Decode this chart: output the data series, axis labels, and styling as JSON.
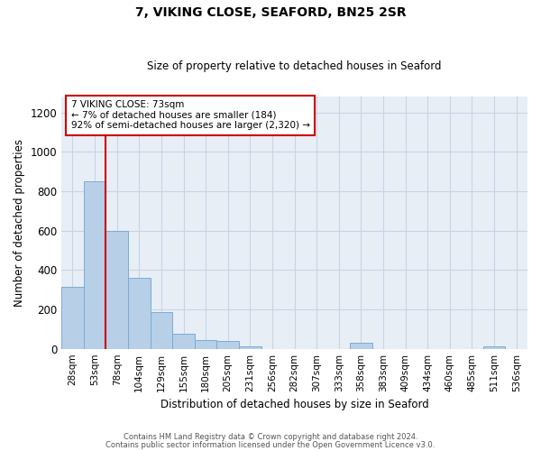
{
  "title": "7, VIKING CLOSE, SEAFORD, BN25 2SR",
  "subtitle": "Size of property relative to detached houses in Seaford",
  "xlabel": "Distribution of detached houses by size in Seaford",
  "ylabel": "Number of detached properties",
  "categories": [
    "28sqm",
    "53sqm",
    "78sqm",
    "104sqm",
    "129sqm",
    "155sqm",
    "180sqm",
    "205sqm",
    "231sqm",
    "256sqm",
    "282sqm",
    "307sqm",
    "333sqm",
    "358sqm",
    "383sqm",
    "409sqm",
    "434sqm",
    "460sqm",
    "485sqm",
    "511sqm",
    "536sqm"
  ],
  "values": [
    315,
    850,
    600,
    360,
    185,
    75,
    45,
    40,
    12,
    0,
    0,
    0,
    0,
    30,
    0,
    0,
    0,
    0,
    0,
    12,
    0
  ],
  "bar_color": "#b8cfe8",
  "bar_edge_color": "#7aacd4",
  "grid_color": "#c8d4e4",
  "background_color": "#e8eef6",
  "vline_x": 1.5,
  "vline_color": "#cc0000",
  "annotation_text": "7 VIKING CLOSE: 73sqm\n← 7% of detached houses are smaller (184)\n92% of semi-detached houses are larger (2,320) →",
  "annotation_box_color": "#ffffff",
  "annotation_box_edge": "#cc0000",
  "ylim": [
    0,
    1280
  ],
  "yticks": [
    0,
    200,
    400,
    600,
    800,
    1000,
    1200
  ],
  "footer_line1": "Contains HM Land Registry data © Crown copyright and database right 2024.",
  "footer_line2": "Contains public sector information licensed under the Open Government Licence v3.0."
}
